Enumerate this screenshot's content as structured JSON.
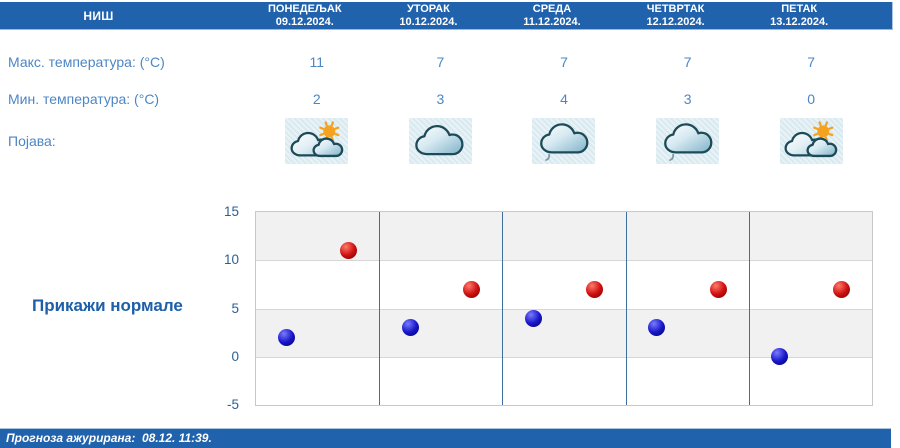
{
  "station": {
    "name": "НИШ"
  },
  "table": {
    "max_label": "Макс. температура: (°C)",
    "min_label": "Мин. температура: (°C)",
    "phenomenon_label": "Појава:"
  },
  "days": [
    {
      "name": "ПОНЕДЕЉАК",
      "date": "09.12.2024.",
      "max": "11",
      "min": "2",
      "icon": "sun-behind-clouds"
    },
    {
      "name": "УТОРАК",
      "date": "10.12.2024.",
      "max": "7",
      "min": "3",
      "icon": "cloudy"
    },
    {
      "name": "СРЕДА",
      "date": "11.12.2024.",
      "max": "7",
      "min": "4",
      "icon": "cloud-drizzle"
    },
    {
      "name": "ЧЕТВРТАК",
      "date": "12.12.2024.",
      "max": "7",
      "min": "3",
      "icon": "cloud-drizzle"
    },
    {
      "name": "ПЕТАК",
      "date": "13.12.2024.",
      "max": "7",
      "min": "0",
      "icon": "sun-behind-clouds"
    }
  ],
  "normals_button_label": "Прикажи нормале",
  "footer": {
    "updated_text": "Прогноза ажурирана:  08.12. 11:39."
  },
  "chart_data": {
    "type": "scatter",
    "categories": [
      "ПОНЕДЕЉАК",
      "УТОРАК",
      "СРЕДА",
      "ЧЕТВРТАК",
      "ПЕТАК"
    ],
    "series": [
      {
        "name": "Макс. температура (°C)",
        "color": "#cf1010",
        "highlight": "#ff7a6a",
        "shadow": "#6e0000",
        "column_offset": 0.75,
        "values": [
          11,
          7,
          7,
          7,
          7
        ]
      },
      {
        "name": "Мин. температура (°C)",
        "color": "#1717c9",
        "highlight": "#7a7aff",
        "shadow": "#000060",
        "column_offset": 0.25,
        "values": [
          2,
          3,
          4,
          3,
          0
        ]
      }
    ],
    "ylim": [
      -5,
      15
    ],
    "yticks": [
      15,
      10,
      5,
      0,
      -5
    ],
    "grid": true,
    "band_colors": [
      "#f1f1f1",
      "#ffffff"
    ],
    "separator_color": "#3f6f9e",
    "legend_position": "none",
    "title": "",
    "xlabel": "",
    "ylabel": ""
  },
  "colors": {
    "header_bg": "#2062ac",
    "text_blue": "#4d86c4",
    "normals_blue": "#1d5fa8",
    "tick_label": "#2f5e93",
    "icon_cell_bg": "#dfecf2"
  }
}
